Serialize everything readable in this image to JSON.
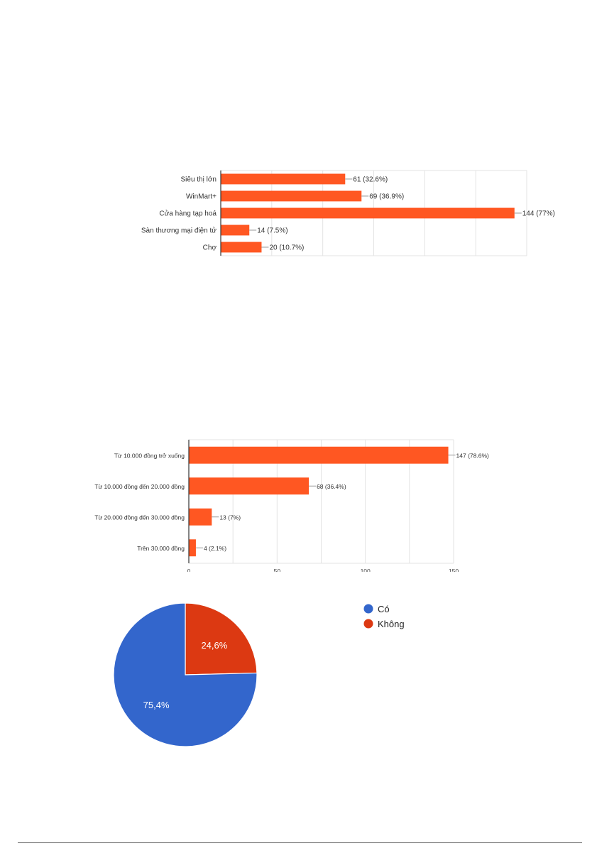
{
  "chart_data": [
    {
      "type": "bar",
      "orientation": "horizontal",
      "categories": [
        "Siêu thị lớn",
        "WinMart+",
        "Cửa hàng tạp hoá",
        "Sàn thương mại điện tử",
        "Chợ"
      ],
      "values": [
        61,
        69,
        144,
        14,
        20
      ],
      "data_labels": [
        "61 (32.6%)",
        "69 (36.9%)",
        "144 (77%)",
        "14 (7.5%)",
        "20 (10.7%)"
      ],
      "xlim": [
        0,
        150
      ],
      "grid": true,
      "bar_color": "#ff5722"
    },
    {
      "type": "bar",
      "orientation": "horizontal",
      "categories": [
        "Từ 10.000 đồng trở xuống",
        "Từ 10.000 đồng đến 20.000 đồng",
        "Từ 20.000 đồng đến 30.000 đồng",
        "Trên 30.000 đồng"
      ],
      "values": [
        147,
        68,
        13,
        4
      ],
      "data_labels": [
        "147 (78.6%)",
        "68 (36.4%)",
        "13 (7%)",
        "4 (2.1%)"
      ],
      "xlim": [
        0,
        150
      ],
      "xticks": [
        "0",
        "50",
        "100",
        "150"
      ],
      "grid": true,
      "bar_color": "#ff5722"
    },
    {
      "type": "pie",
      "slices": [
        {
          "name": "Có",
          "value": 75.4,
          "label": "75,4%",
          "color": "#3366cc"
        },
        {
          "name": "Không",
          "value": 24.6,
          "label": "24,6%",
          "color": "#dc3912"
        }
      ],
      "legend": "right"
    }
  ]
}
